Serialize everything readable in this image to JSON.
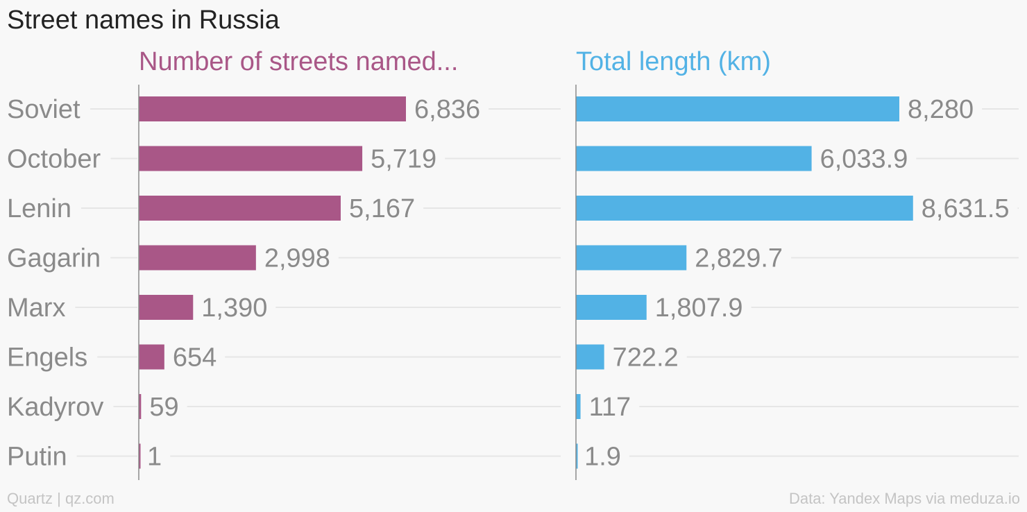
{
  "title": "Street names in Russia",
  "footer": {
    "left": "Quartz | qz.com",
    "right": "Data: Yandex Maps via meduza.io"
  },
  "colors": {
    "left_series": "#a95787",
    "right_series": "#52b2e5",
    "label": "#8a8a8a",
    "grid": "#e6e6e6",
    "axis": "#8a8a8a"
  },
  "chart_data": [
    {
      "type": "bar",
      "orientation": "horizontal",
      "title": "Number of streets named...",
      "categories": [
        "Soviet",
        "October",
        "Lenin",
        "Gagarin",
        "Marx",
        "Engels",
        "Kadyrov",
        "Putin"
      ],
      "values": [
        6836,
        5719,
        5167,
        2998,
        1390,
        654,
        59,
        1
      ],
      "value_labels": [
        "6,836",
        "5,719",
        "5,167",
        "2,998",
        "1,390",
        "654",
        "59",
        "1"
      ],
      "xlim": [
        0,
        10500
      ]
    },
    {
      "type": "bar",
      "orientation": "horizontal",
      "title": "Total length (km)",
      "categories": [
        "Soviet",
        "October",
        "Lenin",
        "Gagarin",
        "Marx",
        "Engels",
        "Kadyrov",
        "Putin"
      ],
      "values": [
        8280,
        6033.9,
        8631.5,
        2829.7,
        1807.9,
        722.2,
        117,
        1.9
      ],
      "value_labels": [
        "8,280",
        "6,033.9",
        "8,631.5",
        "2,829.7",
        "1,807.9",
        "722.2",
        "117",
        "1.9"
      ],
      "xlim": [
        0,
        10500
      ]
    }
  ]
}
